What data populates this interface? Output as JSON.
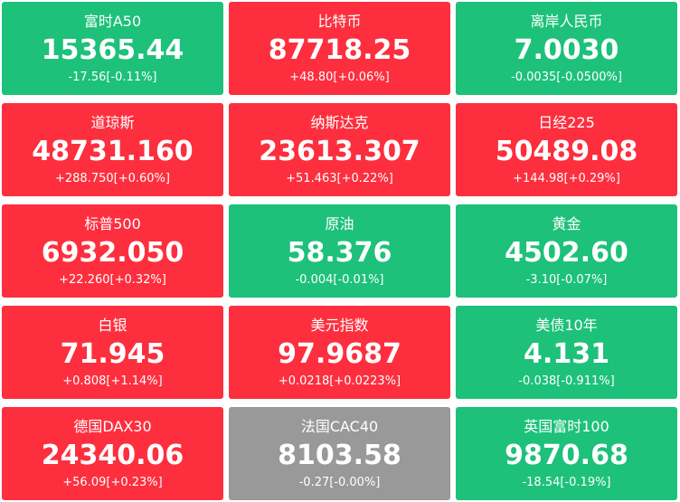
{
  "tiles": [
    {
      "name": "富时A50",
      "price": "15365.44",
      "change": "-17.56[-0.11%]",
      "trend": "down"
    },
    {
      "name": "比特币",
      "price": "87718.25",
      "change": "+48.80[+0.06%]",
      "trend": "up"
    },
    {
      "name": "离岸人民币",
      "price": "7.0030",
      "change": "-0.0035[-0.0500%]",
      "trend": "down"
    },
    {
      "name": "道琼斯",
      "price": "48731.160",
      "change": "+288.750[+0.60%]",
      "trend": "up"
    },
    {
      "name": "纳斯达克",
      "price": "23613.307",
      "change": "+51.463[+0.22%]",
      "trend": "up"
    },
    {
      "name": "日经225",
      "price": "50489.08",
      "change": "+144.98[+0.29%]",
      "trend": "up"
    },
    {
      "name": "标普500",
      "price": "6932.050",
      "change": "+22.260[+0.32%]",
      "trend": "up"
    },
    {
      "name": "原油",
      "price": "58.376",
      "change": "-0.004[-0.01%]",
      "trend": "down"
    },
    {
      "name": "黄金",
      "price": "4502.60",
      "change": "-3.10[-0.07%]",
      "trend": "down"
    },
    {
      "name": "白银",
      "price": "71.945",
      "change": "+0.808[+1.14%]",
      "trend": "up"
    },
    {
      "name": "美元指数",
      "price": "97.9687",
      "change": "+0.0218[+0.0223%]",
      "trend": "up"
    },
    {
      "name": "美债10年",
      "price": "4.131",
      "change": "-0.038[-0.911%]",
      "trend": "down"
    },
    {
      "name": "德国DAX30",
      "price": "24340.06",
      "change": "+56.09[+0.23%]",
      "trend": "up"
    },
    {
      "name": "法国CAC40",
      "price": "8103.58",
      "change": "-0.27[-0.00%]",
      "trend": "flat"
    },
    {
      "name": "英国富时100",
      "price": "9870.68",
      "change": "-18.54[-0.19%]",
      "trend": "down"
    }
  ],
  "colors": {
    "up": "#fd2f3e",
    "down": "#1dc17a",
    "flat": "#999999",
    "text": "#ffffff"
  }
}
